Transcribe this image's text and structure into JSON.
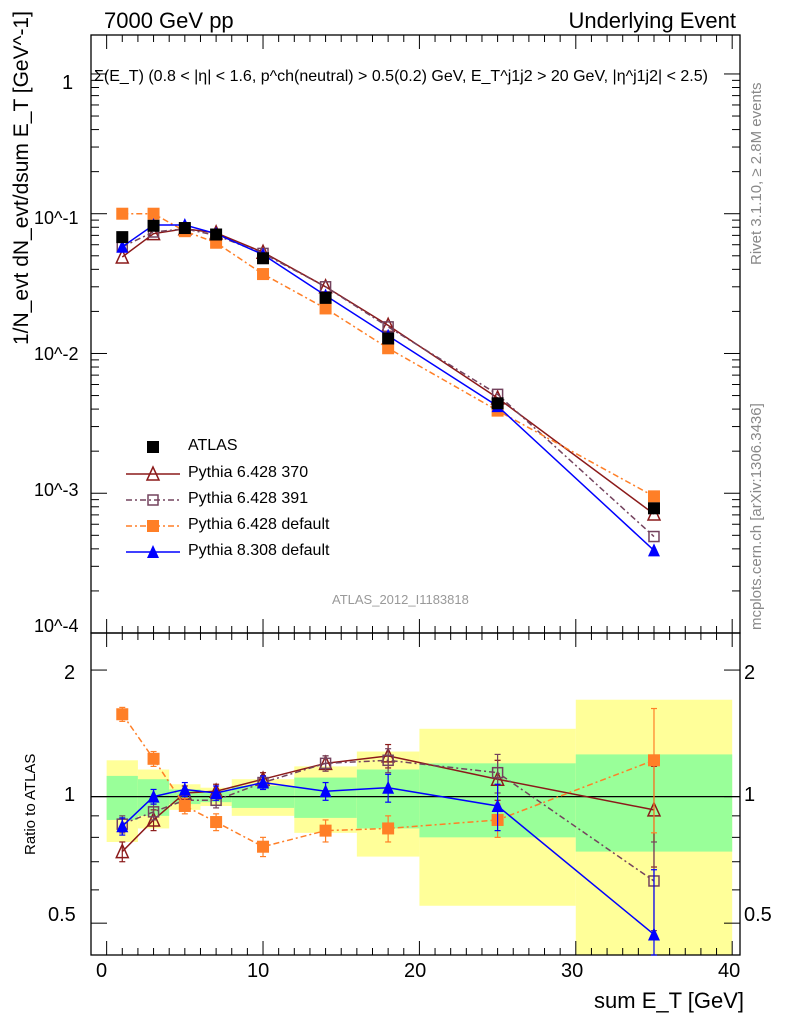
{
  "header": {
    "left": "7000 GeV pp",
    "right": "Underlying Event"
  },
  "main_panel": {
    "ylabel": "1/N_evt dN_evt/dsum E_T [GeV^-1]",
    "cuts_label": "Σ(E_T) (0.8 < |η| < 1.6, p^ch(neutral) > 0.5(0.2) GeV, E_T^j1j2 > 20 GeV, |η^j1j2| < 2.5)",
    "y_ticks": [
      "1",
      "10^-1",
      "10^-2",
      "10^-3",
      "10^-4"
    ],
    "analysis_id": "ATLAS_2012_I1183818"
  },
  "ratio_panel": {
    "ylabel": "Ratio to ATLAS",
    "y_ticks": [
      "0.5",
      "1",
      "2"
    ]
  },
  "x_axis": {
    "label": "sum E_T [GeV]",
    "ticks": [
      "0",
      "10",
      "20",
      "30",
      "40"
    ]
  },
  "side_texts": {
    "rivet": "Rivet 3.1.10, ≥ 2.8M events",
    "mcplots": "mcplots.cern.ch [arXiv:1306.3436]"
  },
  "legend": [
    {
      "label": "ATLAS"
    },
    {
      "label": "Pythia 6.428 370"
    },
    {
      "label": "Pythia 6.428 391"
    },
    {
      "label": "Pythia 6.428 default"
    },
    {
      "label": "Pythia 8.308 default"
    }
  ],
  "chart_data": {
    "type": "scatter",
    "x_range": [
      -1,
      40.5
    ],
    "y_range": [
      0.0001,
      1.9
    ],
    "y_scale": "log",
    "ratio_range": [
      0.42,
      2.45
    ],
    "ratio_scale": "log",
    "bins": [
      [
        0,
        2
      ],
      [
        2,
        4
      ],
      [
        4,
        6
      ],
      [
        6,
        8
      ],
      [
        8,
        12
      ],
      [
        12,
        16
      ],
      [
        16,
        20
      ],
      [
        20,
        30
      ],
      [
        30,
        40
      ]
    ],
    "x": [
      1,
      3,
      5,
      7,
      10,
      14,
      18,
      25,
      35
    ],
    "data": {
      "name": "ATLAS",
      "color": "#000000",
      "values": [
        0.068,
        0.082,
        0.079,
        0.071,
        0.048,
        0.025,
        0.0128,
        0.0044,
        0.00078
      ],
      "band_inner": [
        0.12,
        0.1,
        0.04,
        0.03,
        0.06,
        0.11,
        0.16,
        0.2,
        0.26
      ],
      "band_outer": [
        0.22,
        0.16,
        0.07,
        0.05,
        0.1,
        0.18,
        0.28,
        0.45,
        0.7
      ]
    },
    "series": [
      {
        "name": "Pythia 6.428 370",
        "color": "#8b1a1a",
        "dash": "",
        "marker": "triangle-open",
        "values": [
          0.049,
          0.072,
          0.078,
          0.073,
          0.053,
          0.03,
          0.0159,
          0.0048,
          0.00071
        ],
        "ratio": [
          0.74,
          0.88,
          1.02,
          1.03,
          1.1,
          1.2,
          1.25,
          1.1,
          0.93
        ],
        "ratio_err": [
          0.04,
          0.05,
          0.04,
          0.04,
          0.04,
          0.05,
          0.08,
          0.12,
          0.25
        ]
      },
      {
        "name": "Pythia 6.428 391",
        "color": "#74435e",
        "dash": "6,3,2,3",
        "marker": "square-open",
        "values": [
          0.058,
          0.074,
          0.078,
          0.07,
          0.052,
          0.03,
          0.0155,
          0.0051,
          0.00049
        ],
        "ratio": [
          0.86,
          0.92,
          0.98,
          0.98,
          1.08,
          1.2,
          1.22,
          1.14,
          0.63
        ],
        "ratio_err": [
          0.04,
          0.04,
          0.04,
          0.04,
          0.04,
          0.05,
          0.08,
          0.12,
          0.15
        ]
      },
      {
        "name": "Pythia 6.428 default",
        "color": "#ff7f27",
        "dash": "6,3,2,3",
        "marker": "square",
        "values": [
          0.1,
          0.1,
          0.075,
          0.062,
          0.037,
          0.021,
          0.0109,
          0.0039,
          0.00095
        ],
        "ratio": [
          1.57,
          1.23,
          0.95,
          0.87,
          0.76,
          0.83,
          0.84,
          0.88,
          1.22
        ],
        "ratio_err": [
          0.06,
          0.05,
          0.04,
          0.04,
          0.04,
          0.05,
          0.06,
          0.08,
          0.4
        ]
      },
      {
        "name": "Pythia 8.308 default",
        "color": "#0000ff",
        "dash": "",
        "marker": "triangle",
        "values": [
          0.058,
          0.083,
          0.083,
          0.072,
          0.051,
          0.026,
          0.0134,
          0.0042,
          0.00039
        ],
        "ratio": [
          0.85,
          1.0,
          1.04,
          1.02,
          1.08,
          1.03,
          1.05,
          0.95,
          0.47
        ],
        "ratio_err": [
          0.04,
          0.04,
          0.04,
          0.04,
          0.04,
          0.05,
          0.08,
          0.12,
          0.2
        ]
      }
    ]
  }
}
